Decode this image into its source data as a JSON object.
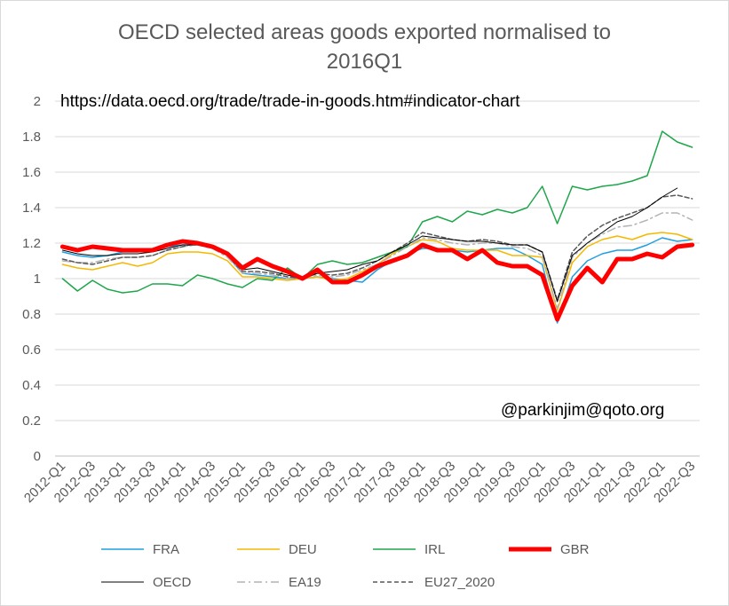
{
  "chart_data": {
    "type": "line",
    "title_line1": "OECD selected areas goods exported normalised to",
    "title_line2": "2016Q1",
    "annotation_url": "https://data.oecd.org/trade/trade-in-goods.htm#indicator-chart",
    "annotation_credit": "@parkinjim@qoto.org",
    "xlabel": "",
    "ylabel": "",
    "ylim": [
      0,
      2
    ],
    "yticks": [
      "0",
      "0.2",
      "0.4",
      "0.6",
      "0.8",
      "1",
      "1.2",
      "1.4",
      "1.6",
      "1.8",
      "2"
    ],
    "x": [
      "2012-Q1",
      "2012-Q2",
      "2012-Q3",
      "2012-Q4",
      "2013-Q1",
      "2013-Q2",
      "2013-Q3",
      "2013-Q4",
      "2014-Q1",
      "2014-Q2",
      "2014-Q3",
      "2014-Q4",
      "2015-Q1",
      "2015-Q2",
      "2015-Q3",
      "2015-Q4",
      "2016-Q1",
      "2016-Q2",
      "2016-Q3",
      "2016-Q4",
      "2017-Q1",
      "2017-Q2",
      "2017-Q3",
      "2017-Q4",
      "2018-Q1",
      "2018-Q2",
      "2018-Q3",
      "2018-Q4",
      "2019-Q1",
      "2019-Q2",
      "2019-Q3",
      "2019-Q4",
      "2020-Q1",
      "2020-Q2",
      "2020-Q3",
      "2020-Q4",
      "2021-Q1",
      "2021-Q2",
      "2021-Q3",
      "2021-Q4",
      "2022-Q1",
      "2022-Q2",
      "2022-Q3"
    ],
    "xtick_labels": [
      "2012-Q1",
      "2012-Q3",
      "2013-Q1",
      "2013-Q3",
      "2014-Q1",
      "2014-Q3",
      "2015-Q1",
      "2015-Q3",
      "2016-Q1",
      "2016-Q3",
      "2017-Q1",
      "2017-Q3",
      "2018-Q1",
      "2018-Q3",
      "2019-Q1",
      "2019-Q3",
      "2020-Q1",
      "2020-Q3",
      "2021-Q1",
      "2021-Q3",
      "2022-Q1",
      "2022-Q3"
    ],
    "grid": "horizontal",
    "legend_position": "bottom",
    "series": [
      {
        "name": "FRA",
        "color": "#1f9fe0",
        "style": "solid",
        "width": 1.5,
        "values": [
          1.15,
          1.13,
          1.12,
          1.13,
          1.15,
          1.15,
          1.16,
          1.18,
          1.19,
          1.19,
          1.18,
          1.13,
          1.03,
          1.02,
          1.01,
          1.0,
          1.0,
          1.01,
          1.0,
          0.99,
          0.98,
          1.05,
          1.1,
          1.14,
          1.17,
          1.17,
          1.16,
          1.15,
          1.16,
          1.17,
          1.17,
          1.13,
          1.08,
          0.75,
          1.01,
          1.1,
          1.14,
          1.16,
          1.16,
          1.19,
          1.23,
          1.21,
          1.22
        ]
      },
      {
        "name": "DEU",
        "color": "#f5b800",
        "style": "solid",
        "width": 1.5,
        "values": [
          1.08,
          1.06,
          1.05,
          1.07,
          1.09,
          1.07,
          1.09,
          1.14,
          1.15,
          1.15,
          1.14,
          1.1,
          1.01,
          1.01,
          1.0,
          0.99,
          1.0,
          1.01,
          0.99,
          1.0,
          1.04,
          1.08,
          1.14,
          1.18,
          1.22,
          1.21,
          1.17,
          1.16,
          1.16,
          1.16,
          1.13,
          1.13,
          1.12,
          0.82,
          1.09,
          1.18,
          1.22,
          1.24,
          1.22,
          1.25,
          1.26,
          1.25,
          1.22
        ]
      },
      {
        "name": "IRL",
        "color": "#1ea64a",
        "style": "solid",
        "width": 1.5,
        "values": [
          1.0,
          0.93,
          0.99,
          0.94,
          0.92,
          0.93,
          0.97,
          0.97,
          0.96,
          1.02,
          1.0,
          0.97,
          0.95,
          1.0,
          0.99,
          1.06,
          1.0,
          1.08,
          1.1,
          1.08,
          1.09,
          1.12,
          1.15,
          1.18,
          1.32,
          1.35,
          1.32,
          1.38,
          1.36,
          1.39,
          1.37,
          1.4,
          1.52,
          1.31,
          1.52,
          1.5,
          1.52,
          1.53,
          1.55,
          1.58,
          1.83,
          1.77,
          1.74
        ]
      },
      {
        "name": "GBR",
        "color": "#ff0000",
        "style": "solid",
        "width": 5,
        "values": [
          1.18,
          1.16,
          1.18,
          1.17,
          1.16,
          1.16,
          1.16,
          1.19,
          1.21,
          1.2,
          1.18,
          1.14,
          1.06,
          1.11,
          1.07,
          1.04,
          1.0,
          1.05,
          0.98,
          0.98,
          1.02,
          1.07,
          1.1,
          1.13,
          1.19,
          1.16,
          1.16,
          1.11,
          1.16,
          1.09,
          1.07,
          1.07,
          1.02,
          0.77,
          0.96,
          1.06,
          0.98,
          1.11,
          1.11,
          1.14,
          1.12,
          1.18,
          1.19
        ]
      },
      {
        "name": "OECD",
        "color": "#000000",
        "style": "solid",
        "width": 1,
        "values": [
          1.16,
          1.14,
          1.13,
          1.13,
          1.14,
          1.14,
          1.15,
          1.17,
          1.19,
          1.19,
          1.17,
          1.13,
          1.05,
          1.06,
          1.04,
          1.02,
          1.0,
          1.03,
          1.04,
          1.05,
          1.08,
          1.1,
          1.15,
          1.19,
          1.24,
          1.23,
          1.22,
          1.21,
          1.21,
          1.2,
          1.19,
          1.19,
          1.15,
          0.87,
          1.13,
          1.2,
          1.26,
          1.32,
          1.35,
          1.4,
          1.46,
          1.51,
          null
        ]
      },
      {
        "name": "EA19",
        "color": "#b3b3b3",
        "style": "dashdot",
        "width": 1.5,
        "values": [
          1.1,
          1.09,
          1.09,
          1.11,
          1.12,
          1.12,
          1.13,
          1.16,
          1.18,
          1.19,
          1.17,
          1.12,
          1.03,
          1.03,
          1.02,
          1.0,
          1.0,
          1.02,
          1.01,
          1.02,
          1.05,
          1.08,
          1.13,
          1.18,
          1.23,
          1.22,
          1.2,
          1.19,
          1.2,
          1.2,
          1.18,
          1.17,
          1.13,
          0.83,
          1.12,
          1.2,
          1.25,
          1.29,
          1.3,
          1.33,
          1.37,
          1.37,
          1.33
        ]
      },
      {
        "name": "EU27_2020",
        "color": "#595959",
        "style": "dashed",
        "width": 1.5,
        "values": [
          1.11,
          1.09,
          1.08,
          1.1,
          1.12,
          1.12,
          1.13,
          1.16,
          1.18,
          1.2,
          1.18,
          1.13,
          1.04,
          1.04,
          1.03,
          1.01,
          1.0,
          1.03,
          1.02,
          1.03,
          1.06,
          1.1,
          1.15,
          1.2,
          1.26,
          1.24,
          1.22,
          1.21,
          1.22,
          1.21,
          1.19,
          1.19,
          1.15,
          0.88,
          1.15,
          1.24,
          1.3,
          1.34,
          1.37,
          1.4,
          1.46,
          1.47,
          1.45
        ]
      }
    ]
  }
}
